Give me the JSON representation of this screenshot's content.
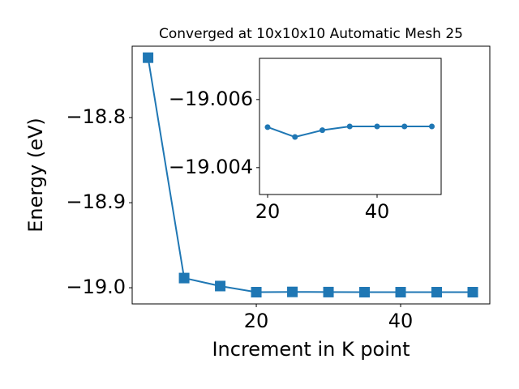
{
  "chart_data": [
    {
      "type": "line",
      "title": "Converged at 10x10x10 Automatic Mesh 25",
      "x_label": "Increment in K point",
      "y_label": "Energy (eV)",
      "x": [
        5,
        10,
        15,
        20,
        25,
        30,
        35,
        40,
        45,
        50
      ],
      "series": [
        {
          "color": "#1f77b4",
          "marker": "square",
          "values": [
            -18.7295,
            -18.9886,
            -18.998,
            -19.0052,
            -19.0049,
            -19.0051,
            -19.0052,
            -19.0052,
            -19.0052,
            -19.0052
          ]
        }
      ],
      "xlim": [
        2.8,
        52.36
      ],
      "xticks": [
        20,
        40
      ],
      "ylim": [
        -19.019,
        -18.716
      ],
      "yticks": [
        {
          "value": -19.0,
          "label": "−19.0"
        },
        {
          "value": -18.9,
          "label": "−18.9"
        },
        {
          "value": -18.8,
          "label": "−18.8"
        }
      ]
    },
    {
      "type": "line",
      "x": [
        20,
        25,
        30,
        35,
        40,
        45,
        50
      ],
      "series": [
        {
          "color": "#1f77b4",
          "marker": "circle",
          "values": [
            -19.00519,
            -19.0049,
            -19.0051,
            -19.00521,
            -19.00521,
            -19.00521,
            -19.00521
          ]
        }
      ],
      "xlim": [
        18.52,
        51.7
      ],
      "xticks": [
        20,
        40
      ],
      "ylim": [
        -19.00321,
        -19.00721
      ],
      "yticks": [
        {
          "value": -19.004,
          "label": "−19.004"
        },
        {
          "value": -19.006,
          "label": "−19.006"
        }
      ]
    }
  ]
}
